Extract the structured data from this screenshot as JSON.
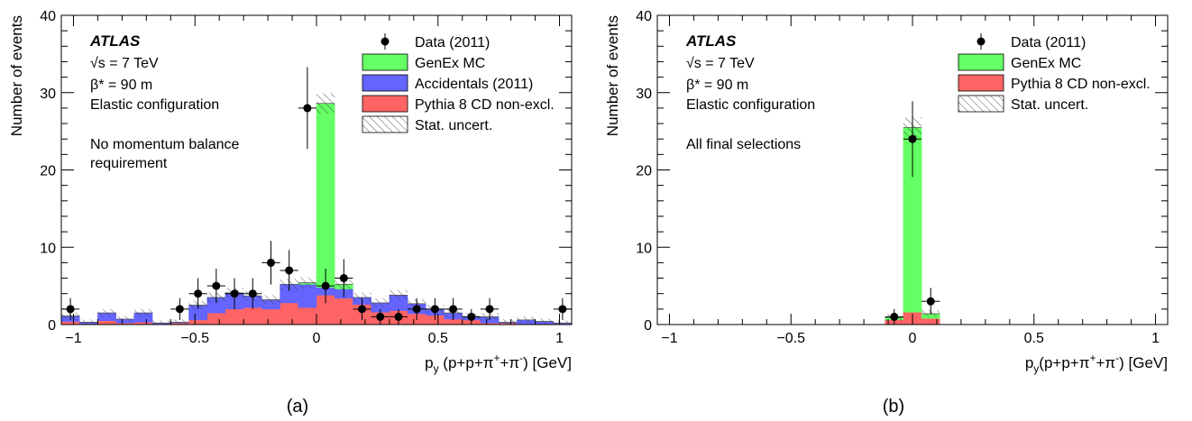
{
  "chart_data": [
    {
      "type": "bar",
      "stacked": true,
      "panel_label": "(a)",
      "experiment": "ATLAS",
      "annotations": [
        "√s = 7 TeV",
        "β* = 90 m",
        "Elastic configuration",
        "No momentum balance",
        "requirement"
      ],
      "xlabel": "p_y (p+p+π⁺+π⁻) [GeV]",
      "xlabel_parts": {
        "p": "p",
        "sub": "y",
        "pre": " (p+p+π",
        "sup1": "+",
        "mid": "+π",
        "sup2": "-",
        "post": ") [GeV]"
      },
      "ylabel": "Number of events",
      "xlim": [
        -1.05,
        1.05
      ],
      "ylim": [
        0,
        40
      ],
      "xticks": [
        -1,
        -0.5,
        0,
        0.5,
        1
      ],
      "xtick_labels": [
        "−1",
        "−0.5",
        "0",
        "0.5",
        "1"
      ],
      "yticks": [
        0,
        10,
        20,
        30,
        40
      ],
      "ytick_labels": [
        "0",
        "10",
        "20",
        "30",
        "40"
      ],
      "grid": false,
      "legend_position": "top-right",
      "bin_edges": [
        -1.05,
        -0.975,
        -0.9,
        -0.825,
        -0.75,
        -0.675,
        -0.6,
        -0.525,
        -0.45,
        -0.375,
        -0.3,
        -0.225,
        -0.15,
        -0.075,
        0.0,
        0.075,
        0.15,
        0.225,
        0.3,
        0.375,
        0.45,
        0.525,
        0.6,
        0.675,
        0.75,
        0.825,
        0.9,
        0.975,
        1.05
      ],
      "series": [
        {
          "name": "Pythia 8 CD non-excl.",
          "color": "#ff6464",
          "values": [
            0.4,
            0.1,
            0.5,
            0.2,
            0.3,
            0.1,
            0.2,
            0.6,
            1.5,
            2.0,
            2.2,
            2.0,
            2.8,
            2.2,
            3.8,
            3.4,
            2.6,
            1.6,
            1.8,
            1.4,
            1.2,
            0.7,
            0.6,
            0.2,
            0.2,
            0.1,
            0.1,
            0.1
          ]
        },
        {
          "name": "Accidentals (2011)",
          "color": "#6464ff",
          "values": [
            0.7,
            0.2,
            1.0,
            0.5,
            1.2,
            0.1,
            0.1,
            1.9,
            2.0,
            2.1,
            1.5,
            1.2,
            2.4,
            3.0,
            1.0,
            1.2,
            0.9,
            1.2,
            2.0,
            1.3,
            0.8,
            0.8,
            0.4,
            0.8,
            0.1,
            0.5,
            0.3,
            0.1
          ]
        },
        {
          "name": "GenEx MC",
          "color": "#64ff64",
          "values": [
            0,
            0,
            0,
            0,
            0,
            0,
            0,
            0,
            0,
            0,
            0,
            0,
            0,
            0.2,
            23.8,
            0.6,
            0,
            0,
            0,
            0,
            0,
            0,
            0,
            0,
            0,
            0,
            0,
            0
          ]
        }
      ],
      "stat_uncert_label": "Stat. uncert.",
      "data_series": {
        "name": "Data (2011)",
        "x": [
          -1.0125,
          -0.5625,
          -0.4875,
          -0.4125,
          -0.3375,
          -0.2625,
          -0.1875,
          -0.1125,
          -0.0375,
          0.0375,
          0.1125,
          0.1875,
          0.2625,
          0.3375,
          0.4125,
          0.4875,
          0.5625,
          0.6375,
          0.7125,
          1.0125
        ],
        "y": [
          2,
          2,
          4,
          5,
          4,
          4,
          8,
          7,
          28,
          5,
          6,
          2,
          1,
          1,
          2,
          2,
          2,
          1,
          2,
          2
        ]
      },
      "legend": [
        "Data (2011)",
        "GenEx MC",
        "Accidentals (2011)",
        "Pythia 8 CD non-excl.",
        "Stat. uncert."
      ]
    },
    {
      "type": "bar",
      "stacked": true,
      "panel_label": "(b)",
      "experiment": "ATLAS",
      "annotations": [
        "√s = 7 TeV",
        "β* = 90 m",
        "Elastic configuration",
        "All final selections"
      ],
      "xlabel": "p_y(p+p+π⁺+π⁻) [GeV]",
      "xlabel_parts": {
        "p": "p",
        "sub": "y",
        "pre": "(p+p+π",
        "sup1": "+",
        "mid": "+π",
        "sup2": "-",
        "post": ") [GeV]"
      },
      "ylabel": "Number of events",
      "xlim": [
        -1.05,
        1.05
      ],
      "ylim": [
        0,
        40
      ],
      "xticks": [
        -1,
        -0.5,
        0,
        0.5,
        1
      ],
      "xtick_labels": [
        "−1",
        "−0.5",
        "0",
        "0.5",
        "1"
      ],
      "yticks": [
        0,
        10,
        20,
        30,
        40
      ],
      "ytick_labels": [
        "0",
        "10",
        "20",
        "30",
        "40"
      ],
      "grid": false,
      "legend_position": "top-right",
      "bin_edges": [
        -0.1125,
        -0.0375,
        0.0375,
        0.1125
      ],
      "series": [
        {
          "name": "Pythia 8 CD non-excl.",
          "color": "#ff6464",
          "values": [
            0.6,
            1.6,
            0.8
          ]
        },
        {
          "name": "GenEx MC",
          "color": "#64ff64",
          "values": [
            0.3,
            23.9,
            0.6
          ]
        }
      ],
      "stat_uncert_label": "Stat. uncert.",
      "data_series": {
        "name": "Data (2011)",
        "x": [
          -0.075,
          0.0,
          0.075
        ],
        "y": [
          1,
          24,
          3
        ]
      },
      "legend": [
        "Data (2011)",
        "GenEx MC",
        "Pythia 8 CD non-excl.",
        "Stat. uncert."
      ]
    }
  ]
}
